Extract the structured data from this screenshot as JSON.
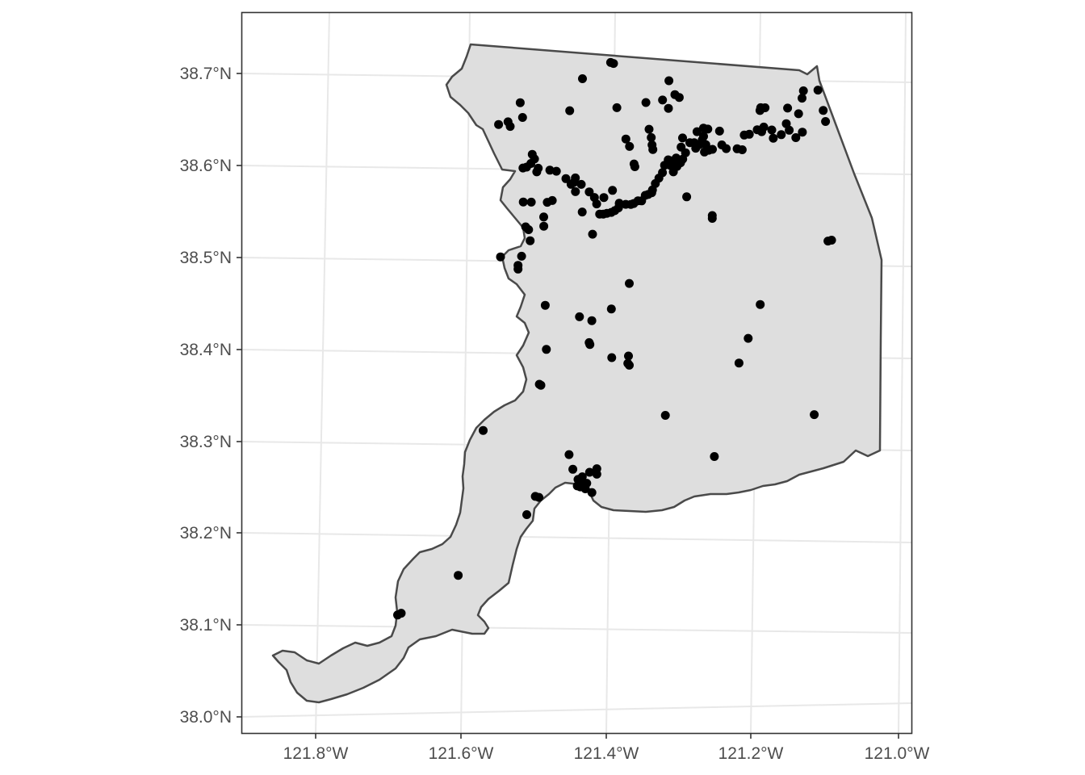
{
  "map": {
    "lat_ticks": [
      "38.0°N",
      "38.1°N",
      "38.2°N",
      "38.3°N",
      "38.4°N",
      "38.5°N",
      "38.6°N",
      "38.7°N"
    ],
    "lon_ticks": [
      "121.8°W",
      "121.6°W",
      "121.4°W",
      "121.2°W",
      "121.0°W"
    ],
    "region_fill": "#dedede",
    "region_outline": "#4a4a4a",
    "point_color": "#000000",
    "grid": true
  },
  "chart_data": {
    "type": "scatter",
    "x_label_text": "",
    "y_label_text": "",
    "xlim": [
      -121.9,
      -120.98
    ],
    "ylim": [
      37.98,
      38.77
    ],
    "points": [
      [
        -121.386,
        38.716
      ],
      [
        -121.382,
        38.715
      ],
      [
        -121.425,
        38.698
      ],
      [
        -121.306,
        38.697
      ],
      [
        -121.101,
        38.689
      ],
      [
        -121.121,
        38.688
      ],
      [
        -121.123,
        38.68
      ],
      [
        -121.298,
        38.682
      ],
      [
        -121.292,
        38.679
      ],
      [
        -121.315,
        38.676
      ],
      [
        -121.338,
        38.673
      ],
      [
        -121.511,
        38.671
      ],
      [
        -121.378,
        38.667
      ],
      [
        -121.307,
        38.667
      ],
      [
        -121.443,
        38.663
      ],
      [
        -121.18,
        38.669
      ],
      [
        -121.174,
        38.669
      ],
      [
        -121.143,
        38.669
      ],
      [
        -121.128,
        38.663
      ],
      [
        -121.091,
        38.655
      ],
      [
        -121.508,
        38.655
      ],
      [
        -121.541,
        38.647
      ],
      [
        -121.528,
        38.65
      ],
      [
        -121.525,
        38.645
      ],
      [
        -121.334,
        38.644
      ],
      [
        -121.259,
        38.646
      ],
      [
        -121.253,
        38.645
      ],
      [
        -121.237,
        38.643
      ],
      [
        -121.203,
        38.639
      ],
      [
        -121.196,
        38.64
      ],
      [
        -121.185,
        38.645
      ],
      [
        -121.179,
        38.643
      ],
      [
        -121.165,
        38.645
      ],
      [
        -121.145,
        38.652
      ],
      [
        -121.141,
        38.645
      ],
      [
        -121.132,
        38.637
      ],
      [
        -121.123,
        38.643
      ],
      [
        -121.163,
        38.636
      ],
      [
        -121.152,
        38.64
      ],
      [
        -121.176,
        38.648
      ],
      [
        -121.288,
        38.635
      ],
      [
        -121.278,
        38.63
      ],
      [
        -121.272,
        38.63
      ],
      [
        -121.27,
        38.624
      ],
      [
        -121.265,
        38.628
      ],
      [
        -121.261,
        38.633
      ],
      [
        -121.256,
        38.628
      ],
      [
        -121.252,
        38.622
      ],
      [
        -121.258,
        38.62
      ],
      [
        -121.247,
        38.623
      ],
      [
        -121.234,
        38.628
      ],
      [
        -121.228,
        38.624
      ],
      [
        -121.213,
        38.624
      ],
      [
        -121.206,
        38.623
      ],
      [
        -121.366,
        38.633
      ],
      [
        -121.361,
        38.625
      ],
      [
        -121.331,
        38.635
      ],
      [
        -121.33,
        38.627
      ],
      [
        -121.329,
        38.622
      ],
      [
        -121.29,
        38.625
      ],
      [
        -121.284,
        38.619
      ],
      [
        -121.297,
        38.613
      ],
      [
        -121.303,
        38.61
      ],
      [
        -121.308,
        38.611
      ],
      [
        -121.313,
        38.605
      ],
      [
        -121.296,
        38.604
      ],
      [
        -121.291,
        38.608
      ],
      [
        -121.288,
        38.612
      ],
      [
        -121.301,
        38.598
      ],
      [
        -121.316,
        38.597
      ],
      [
        -121.305,
        38.605
      ],
      [
        -121.355,
        38.606
      ],
      [
        -121.354,
        38.603
      ],
      [
        -121.321,
        38.591
      ],
      [
        -121.326,
        38.585
      ],
      [
        -121.33,
        38.578
      ],
      [
        -121.331,
        38.575
      ],
      [
        -121.336,
        38.573
      ],
      [
        -121.34,
        38.572
      ],
      [
        -121.345,
        38.566
      ],
      [
        -121.35,
        38.566
      ],
      [
        -121.356,
        38.563
      ],
      [
        -121.36,
        38.562
      ],
      [
        -121.367,
        38.562
      ],
      [
        -121.377,
        38.558
      ],
      [
        -121.382,
        38.555
      ],
      [
        -121.387,
        38.553
      ],
      [
        -121.393,
        38.552
      ],
      [
        -121.398,
        38.551
      ],
      [
        -121.403,
        38.551
      ],
      [
        -121.376,
        38.563
      ],
      [
        -121.385,
        38.577
      ],
      [
        -121.397,
        38.569
      ],
      [
        -121.407,
        38.562
      ],
      [
        -121.417,
        38.575
      ],
      [
        -121.41,
        38.569
      ],
      [
        -121.492,
        38.61
      ],
      [
        -121.495,
        38.615
      ],
      [
        -121.497,
        38.605
      ],
      [
        -121.503,
        38.601
      ],
      [
        -121.508,
        38.6
      ],
      [
        -121.487,
        38.6
      ],
      [
        -121.489,
        38.596
      ],
      [
        -121.471,
        38.598
      ],
      [
        -121.462,
        38.597
      ],
      [
        -121.449,
        38.589
      ],
      [
        -121.438,
        38.585
      ],
      [
        -121.436,
        38.59
      ],
      [
        -121.442,
        38.583
      ],
      [
        -121.428,
        38.583
      ],
      [
        -121.436,
        38.575
      ],
      [
        -121.468,
        38.565
      ],
      [
        -121.475,
        38.563
      ],
      [
        -121.497,
        38.563
      ],
      [
        -121.508,
        38.563
      ],
      [
        -121.48,
        38.547
      ],
      [
        -121.427,
        38.553
      ],
      [
        -121.48,
        38.537
      ],
      [
        -121.505,
        38.536
      ],
      [
        -121.501,
        38.533
      ],
      [
        -121.413,
        38.529
      ],
      [
        -121.499,
        38.521
      ],
      [
        -121.511,
        38.504
      ],
      [
        -121.54,
        38.503
      ],
      [
        -121.516,
        38.494
      ],
      [
        -121.516,
        38.49
      ],
      [
        -121.363,
        38.476
      ],
      [
        -121.479,
        38.451
      ],
      [
        -121.183,
        38.455
      ],
      [
        -121.388,
        38.448
      ],
      [
        -121.432,
        38.439
      ],
      [
        -121.415,
        38.435
      ],
      [
        -121.419,
        38.411
      ],
      [
        -121.418,
        38.409
      ],
      [
        -121.2,
        38.418
      ],
      [
        -121.478,
        38.403
      ],
      [
        -121.388,
        38.395
      ],
      [
        -121.365,
        38.397
      ],
      [
        -121.366,
        38.389
      ],
      [
        -121.364,
        38.387
      ],
      [
        -121.213,
        38.391
      ],
      [
        -121.488,
        38.365
      ],
      [
        -121.486,
        38.364
      ],
      [
        -121.11,
        38.336
      ],
      [
        -121.315,
        38.333
      ],
      [
        -121.566,
        38.314
      ],
      [
        -121.448,
        38.289
      ],
      [
        -121.248,
        38.289
      ],
      [
        -121.443,
        38.273
      ],
      [
        -121.41,
        38.274
      ],
      [
        -121.41,
        38.268
      ],
      [
        -121.42,
        38.27
      ],
      [
        -121.43,
        38.265
      ],
      [
        -121.43,
        38.26
      ],
      [
        -121.436,
        38.262
      ],
      [
        -121.424,
        38.258
      ],
      [
        -121.437,
        38.255
      ],
      [
        -121.417,
        38.248
      ],
      [
        -121.426,
        38.252
      ],
      [
        -121.433,
        38.254
      ],
      [
        -121.49,
        38.242
      ],
      [
        -121.495,
        38.243
      ],
      [
        -121.507,
        38.223
      ],
      [
        -121.602,
        38.156
      ],
      [
        -121.681,
        38.114
      ],
      [
        -121.686,
        38.112
      ],
      [
        -121.089,
        38.525
      ],
      [
        -121.084,
        38.526
      ],
      [
        -121.248,
        38.551
      ],
      [
        -121.248,
        38.548
      ],
      [
        -121.283,
        38.571
      ],
      [
        -121.259,
        38.637
      ],
      [
        -121.268,
        38.642
      ],
      [
        -121.181,
        38.666
      ],
      [
        -121.094,
        38.667
      ]
    ]
  }
}
